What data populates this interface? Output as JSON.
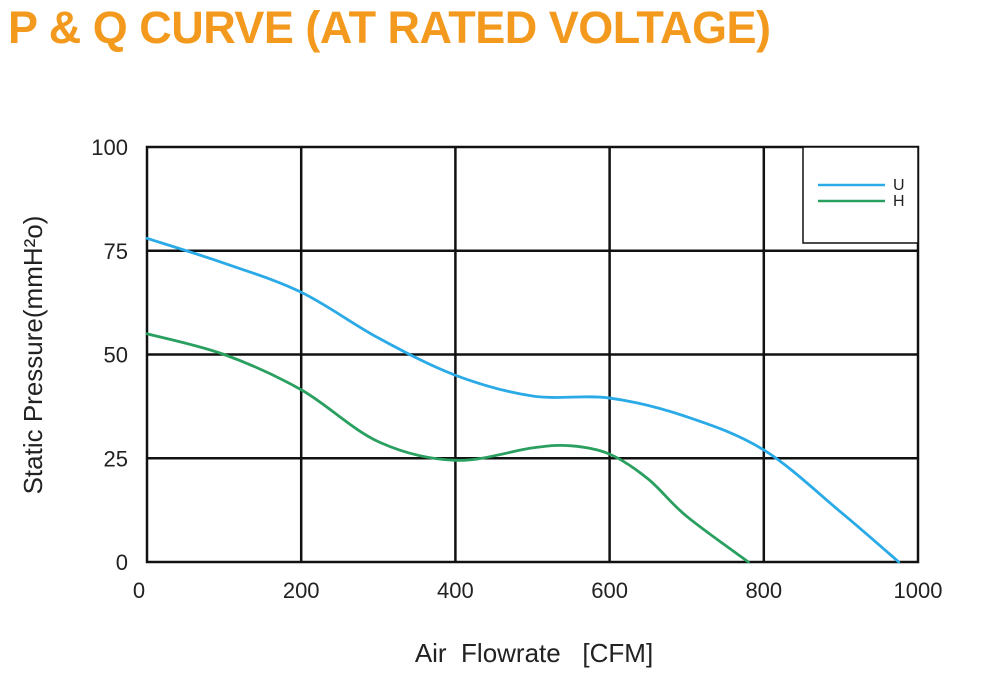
{
  "chart_data": {
    "type": "line",
    "title": "P & Q CURVE (AT RATED VOLTAGE)",
    "xlabel": "Air  Flowrate   [CFM]",
    "ylabel": "Static Pressure(mmH²o)",
    "xlim": [
      0,
      1000
    ],
    "ylim": [
      0,
      100
    ],
    "xticks": [
      "0",
      "200",
      "400",
      "600",
      "800",
      "1000"
    ],
    "yticks": [
      "0",
      "25",
      "50",
      "75",
      "100"
    ],
    "grid": true,
    "legend_position": "top-right",
    "series": [
      {
        "name": "U",
        "color": "#2aaae6",
        "x": [
          0,
          100,
          200,
          300,
          400,
          500,
          600,
          700,
          800,
          900,
          975
        ],
        "y": [
          78,
          72,
          65,
          54,
          45,
          40,
          39.5,
          35,
          27,
          12,
          0
        ]
      },
      {
        "name": "H",
        "color": "#2aa060",
        "x": [
          0,
          100,
          200,
          300,
          400,
          500,
          550,
          600,
          650,
          700,
          780
        ],
        "y": [
          55,
          50,
          41.5,
          29,
          24.5,
          27.5,
          28,
          26,
          20,
          11,
          0
        ]
      }
    ]
  }
}
